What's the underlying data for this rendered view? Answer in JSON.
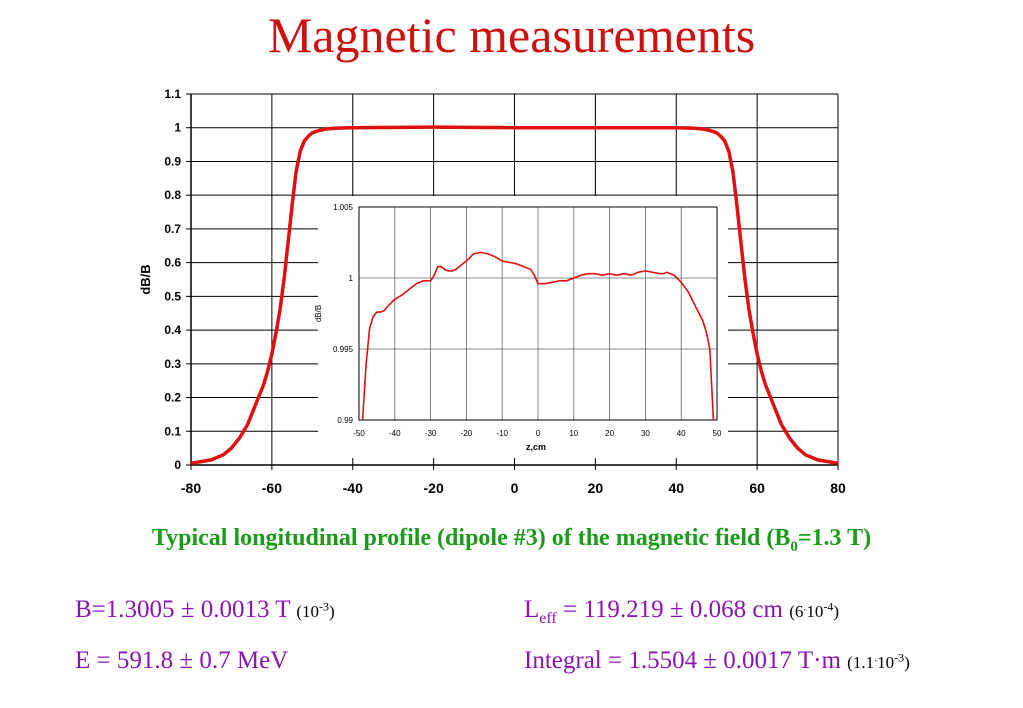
{
  "title": "Magnetic measurements",
  "caption": {
    "text": "Typical longitudinal profile (dipole #3) of the magnetic field (B",
    "sub": "0",
    "tail": "=1.3 T)"
  },
  "results": {
    "b_field": {
      "main": "B=1.3005 ± 0.0013 T",
      "rel_open": "(10",
      "rel_exp": "-3",
      "rel_close": ")"
    },
    "energy": {
      "main": "E = 591.8 ± 0.7 MeV"
    },
    "leff": {
      "pre": "L",
      "sub": "eff",
      "main": " = 119.219 ± 0.068 cm",
      "rel_open": "(6",
      "rel_dot": ".",
      "rel_mid": "10",
      "rel_exp": "-4",
      "rel_close": ")"
    },
    "integral": {
      "main": "Integral = 1.5504 ± 0.0017 T",
      "dot": "·",
      "unit": "m",
      "rel_open": "(1.1",
      "rel_dot": ".",
      "rel_mid": "10",
      "rel_exp": "-3",
      "rel_close": ")"
    }
  },
  "chart_data": [
    {
      "type": "line",
      "title": "",
      "xlabel": "",
      "ylabel": "dB/B",
      "xlim": [
        -80,
        80
      ],
      "ylim": [
        0,
        1.1
      ],
      "x_ticks": [
        -80,
        -60,
        -40,
        -20,
        0,
        20,
        40,
        60,
        80
      ],
      "y_ticks": [
        0,
        0.1,
        0.2,
        0.3,
        0.4,
        0.5,
        0.6,
        0.7,
        0.8,
        0.9,
        1,
        1.1
      ],
      "x_tick_labels": [
        "-80",
        "-60",
        "-40",
        "-20",
        "0",
        "20",
        "40",
        "60",
        "80"
      ],
      "y_tick_labels": [
        "0",
        "0.1",
        "0.2",
        "0.3",
        "0.4",
        "0.5",
        "0.6",
        "0.7",
        "0.8",
        "0.9",
        "1",
        "1.1"
      ],
      "grid": true,
      "series_color": "#e01010",
      "series": [
        {
          "x": [
            -80,
            -75,
            -72,
            -70,
            -68,
            -66,
            -64,
            -62,
            -61,
            -60,
            -59,
            -58,
            -57,
            -56,
            -55,
            -54,
            -53,
            -52,
            -51,
            -50,
            -48,
            -46,
            -44,
            -40,
            -20,
            0,
            20,
            40,
            44,
            46,
            48,
            50,
            51,
            52,
            53,
            54,
            55,
            56,
            57,
            58,
            59,
            60,
            61,
            62,
            64,
            66,
            68,
            70,
            72,
            75,
            80
          ],
          "y": [
            0.005,
            0.015,
            0.03,
            0.05,
            0.08,
            0.12,
            0.18,
            0.24,
            0.28,
            0.33,
            0.39,
            0.46,
            0.55,
            0.66,
            0.77,
            0.87,
            0.93,
            0.96,
            0.975,
            0.985,
            0.993,
            0.997,
            0.999,
            1.0,
            1.002,
            1.0,
            1.0,
            1.0,
            0.999,
            0.997,
            0.993,
            0.985,
            0.975,
            0.96,
            0.93,
            0.87,
            0.77,
            0.66,
            0.55,
            0.46,
            0.39,
            0.33,
            0.28,
            0.24,
            0.18,
            0.12,
            0.08,
            0.05,
            0.03,
            0.015,
            0.005
          ]
        }
      ]
    },
    {
      "type": "line",
      "title": "",
      "xlabel": "z,cm",
      "ylabel": "dB/B",
      "xlim": [
        -50,
        50
      ],
      "ylim": [
        0.99,
        1.005
      ],
      "x_ticks": [
        -50,
        -40,
        -30,
        -20,
        -10,
        0,
        10,
        20,
        30,
        40,
        50
      ],
      "y_ticks": [
        0.99,
        0.995,
        1,
        1.005
      ],
      "x_tick_labels": [
        "-50",
        "-40",
        "-30",
        "-20",
        "-10",
        "0",
        "10",
        "20",
        "30",
        "40",
        "50"
      ],
      "y_tick_labels": [
        "0.99",
        "0.995",
        "1",
        "1.005"
      ],
      "grid": true,
      "series_color": "#e01010",
      "series": [
        {
          "x": [
            -49,
            -48.5,
            -48,
            -47,
            -46,
            -45,
            -44,
            -43,
            -42,
            -40,
            -38,
            -36,
            -34,
            -32,
            -30,
            -29,
            -28,
            -27,
            -26,
            -25,
            -24,
            -23,
            -22,
            -20,
            -18,
            -16,
            -14,
            -13,
            -12,
            -10,
            -8,
            -6,
            -4,
            -2,
            -1,
            0,
            2,
            4,
            6,
            8,
            10,
            12,
            14,
            16,
            18,
            20,
            22,
            24,
            26,
            28,
            30,
            32,
            34,
            35,
            36,
            38,
            40,
            42,
            44,
            46,
            47,
            48,
            49
          ],
          "y": [
            0.99,
            0.992,
            0.994,
            0.9965,
            0.9973,
            0.9976,
            0.9976,
            0.9977,
            0.998,
            0.9985,
            0.9988,
            0.9992,
            0.9996,
            0.9998,
            0.9998,
            1.0002,
            1.0008,
            1.0008,
            1.0006,
            1.0005,
            1.0005,
            1.0006,
            1.0008,
            1.0012,
            1.0017,
            1.0018,
            1.0017,
            1.0016,
            1.0015,
            1.0012,
            1.0011,
            1.001,
            1.0008,
            1.0006,
            1.0002,
            0.9996,
            0.9996,
            0.9997,
            0.9998,
            0.9998,
            1.0,
            1.0002,
            1.0003,
            1.0003,
            1.0002,
            1.0003,
            1.0002,
            1.0003,
            1.0002,
            1.0004,
            1.0005,
            1.0004,
            1.0003,
            1.0003,
            1.0004,
            1.0002,
            0.9997,
            0.999,
            0.998,
            0.997,
            0.9962,
            0.995,
            0.99
          ]
        }
      ]
    }
  ]
}
